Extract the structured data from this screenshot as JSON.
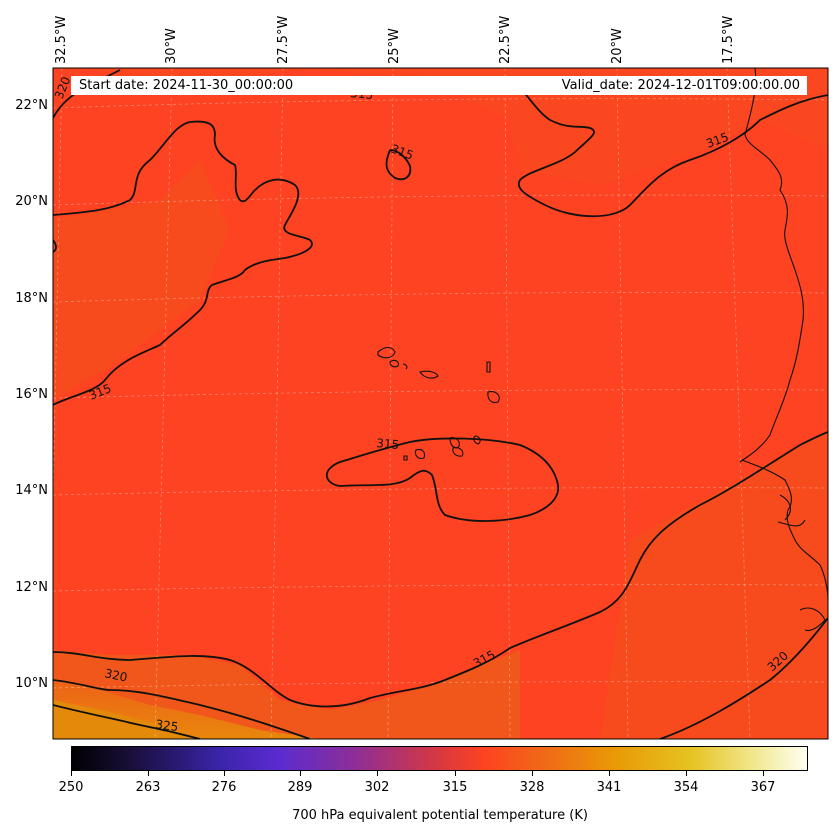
{
  "header": {
    "start_date": "Start date: 2024-11-30_00:00:00",
    "valid_date": "Valid_date: 2024-12-01T09:00:00.00"
  },
  "longitude_labels": [
    "32.5°W",
    "30°W",
    "27.5°W",
    "25°W",
    "22.5°W",
    "20°W",
    "17.5°W"
  ],
  "latitude_labels": [
    "22°N",
    "20°N",
    "18°N",
    "16°N",
    "14°N",
    "12°N",
    "10°N"
  ],
  "contour_labels": [
    "320",
    "315",
    "315",
    "315",
    "315",
    "315",
    "320",
    "320",
    "325",
    "315"
  ],
  "colorbar": {
    "ticks": [
      "250",
      "263",
      "276",
      "289",
      "302",
      "315",
      "328",
      "341",
      "354",
      "367"
    ],
    "title": "700 hPa equivalent potential temperature (K)"
  },
  "colors": {
    "field_main": "#fd4321",
    "field_warm": "#e8850c",
    "contour": "#111111",
    "coastline": "#111111"
  }
}
